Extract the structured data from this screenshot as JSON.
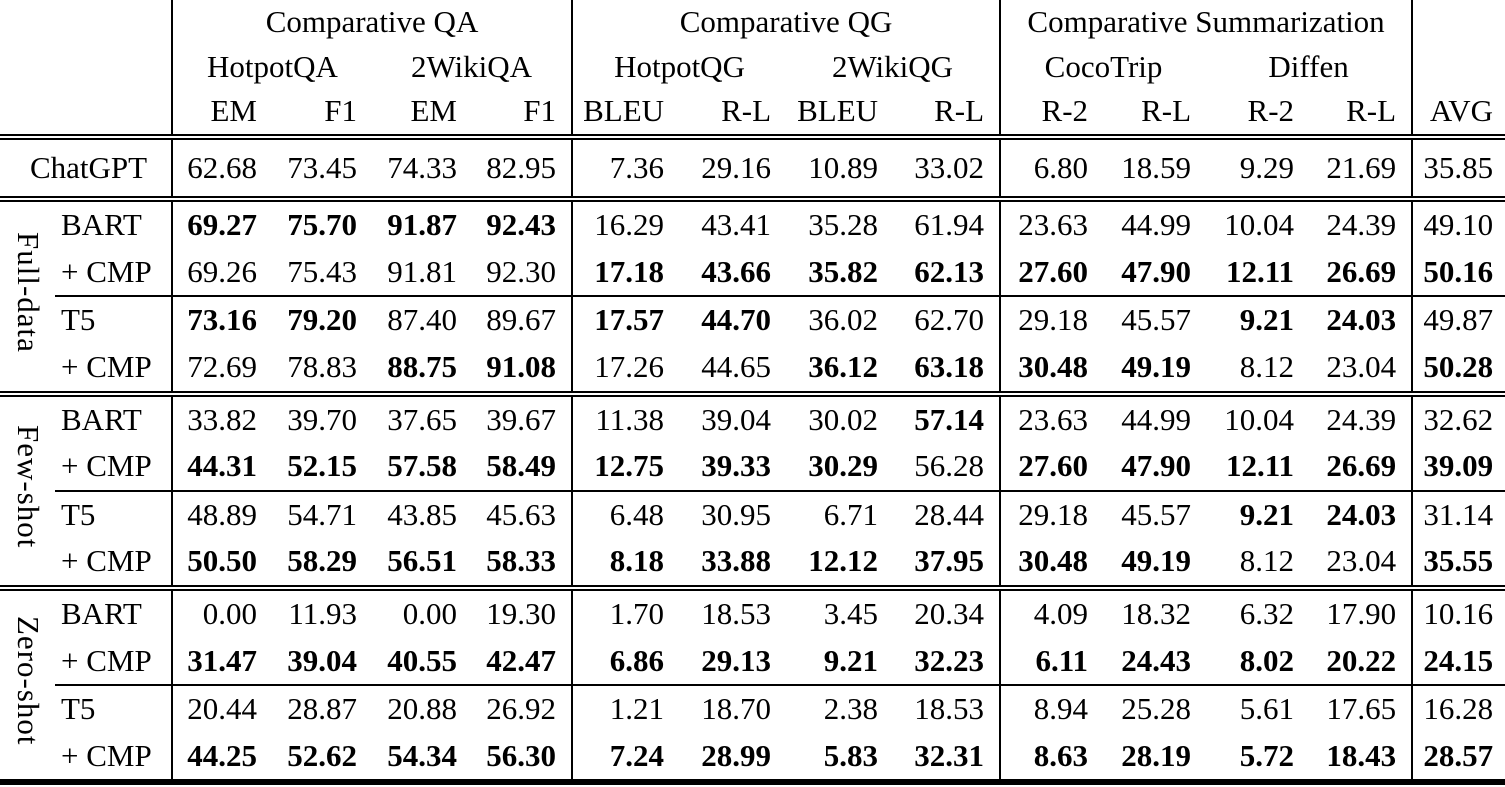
{
  "table": {
    "header": {
      "groups": [
        "Comparative QA",
        "Comparative QG",
        "Comparative Summarization"
      ],
      "datasets": [
        "HotpotQA",
        "2WikiQA",
        "HotpotQG",
        "2WikiQG",
        "CocoTrip",
        "Diffen"
      ],
      "metrics": [
        "EM",
        "F1",
        "EM",
        "F1",
        "BLEU",
        "R-L",
        "BLEU",
        "R-L",
        "R-2",
        "R-L",
        "R-2",
        "R-L"
      ],
      "avg_label": "AVG"
    },
    "baseline": {
      "model": "ChatGPT",
      "values": [
        "62.68",
        "73.45",
        "74.33",
        "82.95",
        "7.36",
        "29.16",
        "10.89",
        "33.02",
        "6.80",
        "18.59",
        "9.29",
        "21.69",
        "35.85"
      ],
      "bold": [
        0,
        0,
        0,
        0,
        0,
        0,
        0,
        0,
        0,
        0,
        0,
        0,
        0
      ]
    },
    "sections": [
      {
        "label": "Full-data",
        "blocks": [
          {
            "rows": [
              {
                "model": "BART",
                "values": [
                  "69.27",
                  "75.70",
                  "91.87",
                  "92.43",
                  "16.29",
                  "43.41",
                  "35.28",
                  "61.94",
                  "23.63",
                  "44.99",
                  "10.04",
                  "24.39",
                  "49.10"
                ],
                "bold": [
                  1,
                  1,
                  1,
                  1,
                  0,
                  0,
                  0,
                  0,
                  0,
                  0,
                  0,
                  0,
                  0
                ]
              },
              {
                "model": "+ CMP",
                "values": [
                  "69.26",
                  "75.43",
                  "91.81",
                  "92.30",
                  "17.18",
                  "43.66",
                  "35.82",
                  "62.13",
                  "27.60",
                  "47.90",
                  "12.11",
                  "26.69",
                  "50.16"
                ],
                "bold": [
                  0,
                  0,
                  0,
                  0,
                  1,
                  1,
                  1,
                  1,
                  1,
                  1,
                  1,
                  1,
                  1
                ]
              }
            ]
          },
          {
            "rows": [
              {
                "model": "T5",
                "values": [
                  "73.16",
                  "79.20",
                  "87.40",
                  "89.67",
                  "17.57",
                  "44.70",
                  "36.02",
                  "62.70",
                  "29.18",
                  "45.57",
                  "9.21",
                  "24.03",
                  "49.87"
                ],
                "bold": [
                  1,
                  1,
                  0,
                  0,
                  1,
                  1,
                  0,
                  0,
                  0,
                  0,
                  1,
                  1,
                  0
                ]
              },
              {
                "model": "+ CMP",
                "values": [
                  "72.69",
                  "78.83",
                  "88.75",
                  "91.08",
                  "17.26",
                  "44.65",
                  "36.12",
                  "63.18",
                  "30.48",
                  "49.19",
                  "8.12",
                  "23.04",
                  "50.28"
                ],
                "bold": [
                  0,
                  0,
                  1,
                  1,
                  0,
                  0,
                  1,
                  1,
                  1,
                  1,
                  0,
                  0,
                  1
                ]
              }
            ]
          }
        ]
      },
      {
        "label": "Few-shot",
        "blocks": [
          {
            "rows": [
              {
                "model": "BART",
                "values": [
                  "33.82",
                  "39.70",
                  "37.65",
                  "39.67",
                  "11.38",
                  "39.04",
                  "30.02",
                  "57.14",
                  "23.63",
                  "44.99",
                  "10.04",
                  "24.39",
                  "32.62"
                ],
                "bold": [
                  0,
                  0,
                  0,
                  0,
                  0,
                  0,
                  0,
                  1,
                  0,
                  0,
                  0,
                  0,
                  0
                ]
              },
              {
                "model": "+ CMP",
                "values": [
                  "44.31",
                  "52.15",
                  "57.58",
                  "58.49",
                  "12.75",
                  "39.33",
                  "30.29",
                  "56.28",
                  "27.60",
                  "47.90",
                  "12.11",
                  "26.69",
                  "39.09"
                ],
                "bold": [
                  1,
                  1,
                  1,
                  1,
                  1,
                  1,
                  1,
                  0,
                  1,
                  1,
                  1,
                  1,
                  1
                ]
              }
            ]
          },
          {
            "rows": [
              {
                "model": "T5",
                "values": [
                  "48.89",
                  "54.71",
                  "43.85",
                  "45.63",
                  "6.48",
                  "30.95",
                  "6.71",
                  "28.44",
                  "29.18",
                  "45.57",
                  "9.21",
                  "24.03",
                  "31.14"
                ],
                "bold": [
                  0,
                  0,
                  0,
                  0,
                  0,
                  0,
                  0,
                  0,
                  0,
                  0,
                  1,
                  1,
                  0
                ]
              },
              {
                "model": "+ CMP",
                "values": [
                  "50.50",
                  "58.29",
                  "56.51",
                  "58.33",
                  "8.18",
                  "33.88",
                  "12.12",
                  "37.95",
                  "30.48",
                  "49.19",
                  "8.12",
                  "23.04",
                  "35.55"
                ],
                "bold": [
                  1,
                  1,
                  1,
                  1,
                  1,
                  1,
                  1,
                  1,
                  1,
                  1,
                  0,
                  0,
                  1
                ]
              }
            ]
          }
        ]
      },
      {
        "label": "Zero-shot",
        "blocks": [
          {
            "rows": [
              {
                "model": "BART",
                "values": [
                  "0.00",
                  "11.93",
                  "0.00",
                  "19.30",
                  "1.70",
                  "18.53",
                  "3.45",
                  "20.34",
                  "4.09",
                  "18.32",
                  "6.32",
                  "17.90",
                  "10.16"
                ],
                "bold": [
                  0,
                  0,
                  0,
                  0,
                  0,
                  0,
                  0,
                  0,
                  0,
                  0,
                  0,
                  0,
                  0
                ]
              },
              {
                "model": "+ CMP",
                "values": [
                  "31.47",
                  "39.04",
                  "40.55",
                  "42.47",
                  "6.86",
                  "29.13",
                  "9.21",
                  "32.23",
                  "6.11",
                  "24.43",
                  "8.02",
                  "20.22",
                  "24.15"
                ],
                "bold": [
                  1,
                  1,
                  1,
                  1,
                  1,
                  1,
                  1,
                  1,
                  1,
                  1,
                  1,
                  1,
                  1
                ]
              }
            ]
          },
          {
            "rows": [
              {
                "model": "T5",
                "values": [
                  "20.44",
                  "28.87",
                  "20.88",
                  "26.92",
                  "1.21",
                  "18.70",
                  "2.38",
                  "18.53",
                  "8.94",
                  "25.28",
                  "5.61",
                  "17.65",
                  "16.28"
                ],
                "bold": [
                  0,
                  0,
                  0,
                  0,
                  0,
                  0,
                  0,
                  0,
                  0,
                  0,
                  0,
                  0,
                  0
                ]
              },
              {
                "model": "+ CMP",
                "values": [
                  "44.25",
                  "52.62",
                  "54.34",
                  "56.30",
                  "7.24",
                  "28.99",
                  "5.83",
                  "32.31",
                  "8.63",
                  "28.19",
                  "5.72",
                  "18.43",
                  "28.57"
                ],
                "bold": [
                  1,
                  1,
                  1,
                  1,
                  1,
                  1,
                  1,
                  1,
                  1,
                  1,
                  1,
                  1,
                  1
                ]
              }
            ]
          }
        ]
      }
    ]
  }
}
